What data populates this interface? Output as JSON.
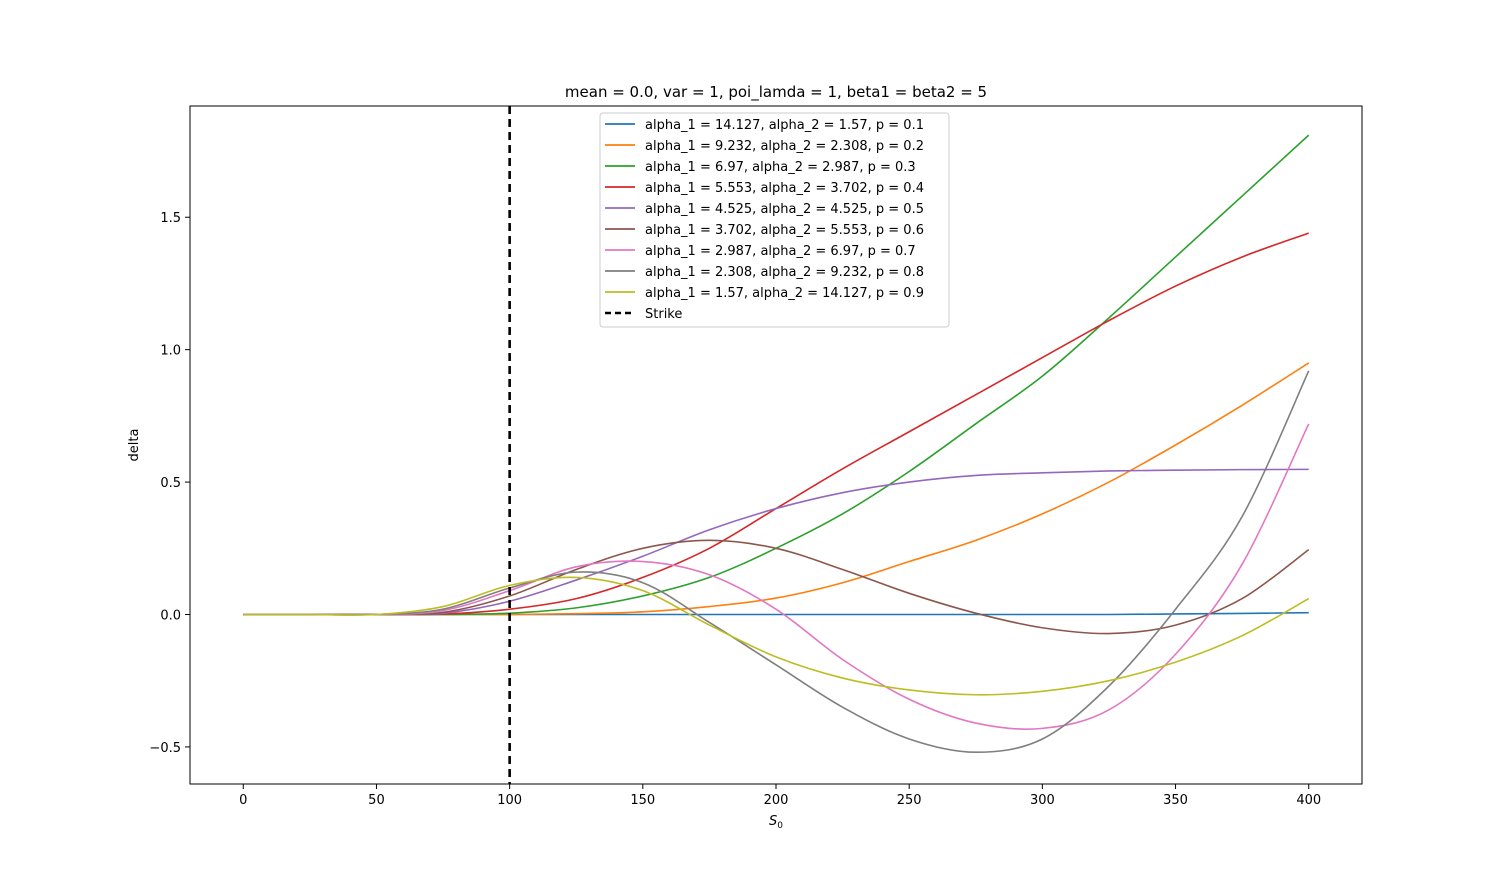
{
  "chart_data": {
    "type": "line",
    "title": "mean = 0.0, var = 1, poi_lamda = 1,  beta1 =  beta2 = 5",
    "xlabel": "S",
    "xlabel_sub": "0",
    "ylabel": "delta",
    "xlim": [
      -20,
      420
    ],
    "ylim": [
      -0.64,
      1.92
    ],
    "xticks": [
      0,
      50,
      100,
      150,
      200,
      250,
      300,
      350,
      400
    ],
    "xtick_labels": [
      "0",
      "50",
      "100",
      "150",
      "200",
      "250",
      "300",
      "350",
      "400"
    ],
    "yticks": [
      -0.5,
      0.0,
      0.5,
      1.0,
      1.5
    ],
    "ytick_labels": [
      "−0.5",
      "0.0",
      "0.5",
      "1.0",
      "1.5"
    ],
    "legend_position": "top-center",
    "strike": {
      "label": "Strike",
      "x": 100,
      "color": "#000000"
    },
    "x": [
      0,
      25,
      50,
      75,
      100,
      125,
      150,
      175,
      200,
      225,
      250,
      275,
      300,
      325,
      350,
      375,
      400
    ],
    "series": [
      {
        "name": "alpha_1 = 14.127, alpha_2 = 1.57, p = 0.1",
        "color": "#1f77b4",
        "values": [
          0,
          0,
          0,
          0,
          0,
          0,
          0,
          0,
          0,
          0,
          0,
          0,
          0,
          0,
          0.002,
          0.004,
          0.007
        ]
      },
      {
        "name": "alpha_1 = 9.232, alpha_2 = 2.308, p = 0.2",
        "color": "#ff7f0e",
        "values": [
          0,
          0,
          0,
          0,
          0,
          0.003,
          0.01,
          0.03,
          0.062,
          0.12,
          0.2,
          0.28,
          0.38,
          0.5,
          0.64,
          0.79,
          0.95
        ]
      },
      {
        "name": "alpha_1 = 6.97, alpha_2 = 2.987, p = 0.3",
        "color": "#2ca02c",
        "values": [
          0,
          0,
          0,
          0,
          0.005,
          0.025,
          0.07,
          0.14,
          0.25,
          0.38,
          0.54,
          0.72,
          0.9,
          1.12,
          1.35,
          1.58,
          1.81
        ]
      },
      {
        "name": "alpha_1 = 5.553, alpha_2 = 3.702, p = 0.4",
        "color": "#d62728",
        "values": [
          0,
          0,
          0,
          0.002,
          0.02,
          0.06,
          0.14,
          0.25,
          0.4,
          0.55,
          0.69,
          0.83,
          0.97,
          1.11,
          1.24,
          1.35,
          1.44
        ]
      },
      {
        "name": "alpha_1 = 4.525, alpha_2 = 4.525, p = 0.5",
        "color": "#9467bd",
        "values": [
          0,
          0,
          0,
          0.005,
          0.05,
          0.13,
          0.22,
          0.32,
          0.4,
          0.46,
          0.5,
          0.525,
          0.535,
          0.542,
          0.545,
          0.547,
          0.548
        ]
      },
      {
        "name": "alpha_1 = 3.702, alpha_2 = 5.553, p = 0.6",
        "color": "#8c564b",
        "values": [
          0,
          0,
          0,
          0.008,
          0.07,
          0.17,
          0.25,
          0.28,
          0.25,
          0.17,
          0.08,
          0.005,
          -0.05,
          -0.072,
          -0.04,
          0.06,
          0.245
        ]
      },
      {
        "name": "alpha_1 = 2.987, alpha_2 = 6.97, p = 0.7",
        "color": "#e377c2",
        "values": [
          0,
          0,
          0,
          0.015,
          0.09,
          0.18,
          0.2,
          0.15,
          0.02,
          -0.17,
          -0.32,
          -0.41,
          -0.43,
          -0.36,
          -0.15,
          0.19,
          0.72
        ]
      },
      {
        "name": "alpha_1 = 2.308, alpha_2 = 9.232, p = 0.8",
        "color": "#7f7f7f",
        "values": [
          0,
          0,
          0,
          0.02,
          0.1,
          0.16,
          0.12,
          -0.03,
          -0.19,
          -0.35,
          -0.47,
          -0.52,
          -0.47,
          -0.27,
          0.02,
          0.37,
          0.92
        ]
      },
      {
        "name": "alpha_1 = 1.57, alpha_2 = 14.127, p = 0.9",
        "color": "#bcbd22",
        "values": [
          0,
          0,
          0,
          0.03,
          0.11,
          0.14,
          0.09,
          -0.04,
          -0.16,
          -0.24,
          -0.285,
          -0.303,
          -0.29,
          -0.25,
          -0.18,
          -0.08,
          0.06
        ]
      }
    ]
  }
}
